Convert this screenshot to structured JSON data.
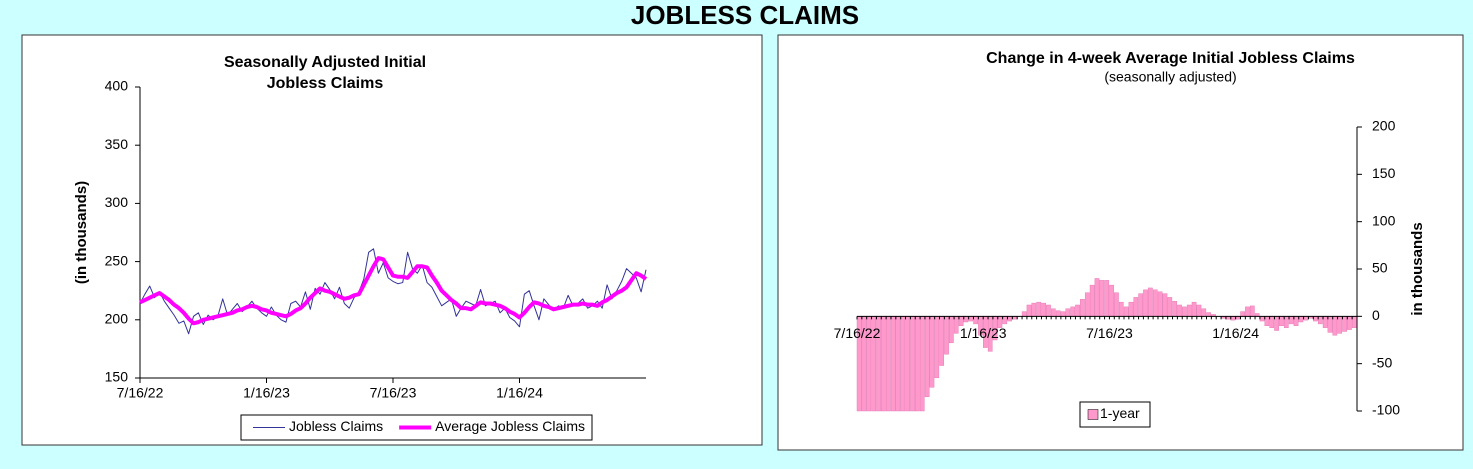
{
  "header": {
    "title": "JOBLESS CLAIMS"
  },
  "chart_data": [
    {
      "type": "line",
      "title": [
        "Seasonally Adjusted Initial",
        "Jobless Claims"
      ],
      "y_label": "(in thousands)",
      "categories": [
        "7/16/22",
        null,
        null,
        null,
        null,
        null,
        null,
        null,
        null,
        null,
        null,
        null,
        null,
        null,
        null,
        null,
        null,
        null,
        null,
        null,
        null,
        null,
        null,
        null,
        null,
        null,
        "1/16/23",
        null,
        null,
        null,
        null,
        null,
        null,
        null,
        null,
        null,
        null,
        null,
        null,
        null,
        null,
        null,
        null,
        null,
        null,
        null,
        null,
        null,
        null,
        null,
        null,
        null,
        "7/16/23",
        null,
        null,
        null,
        null,
        null,
        null,
        null,
        null,
        null,
        null,
        null,
        null,
        null,
        null,
        null,
        null,
        null,
        null,
        null,
        null,
        null,
        null,
        null,
        null,
        null,
        "1/16/24",
        null,
        null,
        null,
        null,
        null,
        null,
        null,
        null,
        null,
        null,
        null,
        null,
        null,
        null,
        null,
        null,
        null,
        null,
        null,
        null,
        null,
        null,
        null,
        null,
        null,
        null
      ],
      "series": [
        {
          "name": "Jobless Claims",
          "color": "#333399",
          "width": 1,
          "values": [
            214,
            222,
            229,
            219,
            224,
            216,
            210,
            204,
            197,
            199,
            188,
            203,
            206,
            196,
            204,
            200,
            203,
            218,
            204,
            209,
            214,
            207,
            211,
            216,
            210,
            206,
            203,
            211,
            204,
            200,
            198,
            214,
            216,
            211,
            224,
            209,
            227,
            222,
            232,
            226,
            218,
            228,
            214,
            210,
            219,
            224,
            235,
            258,
            261,
            240,
            249,
            236,
            233,
            231,
            232,
            258,
            244,
            240,
            247,
            232,
            228,
            220,
            212,
            215,
            218,
            203,
            210,
            216,
            214,
            212,
            226,
            212,
            214,
            216,
            206,
            210,
            202,
            199,
            194,
            222,
            225,
            212,
            200,
            218,
            213,
            208,
            212,
            210,
            221,
            212,
            214,
            218,
            210,
            212,
            216,
            210,
            230,
            218,
            225,
            233,
            244,
            240,
            236,
            224,
            243
          ]
        },
        {
          "name": "Average Jobless Claims",
          "color": "#ff00ff",
          "width": 4,
          "values": [
            215,
            217,
            219,
            221,
            223,
            220,
            217,
            213,
            210,
            206,
            201,
            197,
            198,
            200,
            201,
            202,
            203,
            204,
            205,
            206,
            208,
            209,
            211,
            212,
            211,
            209,
            208,
            206,
            205,
            204,
            203,
            205,
            208,
            210,
            214,
            219,
            223,
            227,
            225,
            224,
            222,
            220,
            218,
            219,
            221,
            222,
            230,
            238,
            246,
            253,
            252,
            245,
            238,
            237,
            237,
            236,
            241,
            246,
            246,
            245,
            238,
            232,
            225,
            221,
            217,
            214,
            210,
            210,
            209,
            212,
            215,
            214,
            214,
            213,
            212,
            210,
            207,
            205,
            202,
            206,
            211,
            215,
            214,
            212,
            211,
            209,
            210,
            211,
            212,
            213,
            213,
            214,
            213,
            213,
            212,
            215,
            217,
            220,
            223,
            225,
            228,
            234,
            240,
            238,
            235
          ]
        }
      ],
      "ylim": [
        150,
        400
      ],
      "yticks": [
        150,
        200,
        250,
        300,
        350,
        400
      ],
      "y_axis_position": "left",
      "grid": false,
      "legend": "bottom"
    },
    {
      "type": "bar",
      "title": "Change in 4-week Average Initial Jobless Claims",
      "subtitle": "(seasonally adjusted)",
      "y_label": "in thousands",
      "categories": [
        "7/16/22",
        null,
        null,
        null,
        null,
        null,
        null,
        null,
        null,
        null,
        null,
        null,
        null,
        null,
        null,
        null,
        null,
        null,
        null,
        null,
        null,
        null,
        null,
        null,
        null,
        null,
        "1/16/23",
        null,
        null,
        null,
        null,
        null,
        null,
        null,
        null,
        null,
        null,
        null,
        null,
        null,
        null,
        null,
        null,
        null,
        null,
        null,
        null,
        null,
        null,
        null,
        null,
        null,
        "7/16/23",
        null,
        null,
        null,
        null,
        null,
        null,
        null,
        null,
        null,
        null,
        null,
        null,
        null,
        null,
        null,
        null,
        null,
        null,
        null,
        null,
        null,
        null,
        null,
        null,
        null,
        "1/16/24",
        null,
        null,
        null,
        null,
        null,
        null,
        null,
        null,
        null,
        null,
        null,
        null,
        null,
        null,
        null,
        null,
        null,
        null,
        null,
        null,
        null,
        null,
        null,
        null
      ],
      "series": [
        {
          "name": "1-year",
          "color": "#ff99cc",
          "values": [
            -100,
            -100,
            -100,
            -100,
            -100,
            -100,
            -100,
            -100,
            -100,
            -100,
            -100,
            -100,
            -100,
            -100,
            -85,
            -75,
            -65,
            -52,
            -40,
            -28,
            -18,
            -10,
            -6,
            -5,
            -8,
            -20,
            -33,
            -37,
            -25,
            -12,
            -8,
            -5,
            -3,
            0,
            5,
            12,
            14,
            15,
            14,
            12,
            8,
            6,
            5,
            8,
            10,
            12,
            18,
            25,
            33,
            40,
            38,
            38,
            33,
            25,
            15,
            10,
            15,
            20,
            24,
            28,
            30,
            28,
            26,
            24,
            20,
            16,
            12,
            10,
            12,
            15,
            12,
            8,
            4,
            2,
            0,
            -2,
            -3,
            -4,
            -3,
            5,
            10,
            11,
            3,
            -5,
            -10,
            -12,
            -15,
            -10,
            -12,
            -8,
            -10,
            -6,
            -4,
            -2,
            -5,
            -8,
            -12,
            -17,
            -20,
            -18,
            -16,
            -14,
            -12
          ]
        }
      ],
      "ylim": [
        -100,
        200
      ],
      "yticks": [
        -100,
        -50,
        0,
        50,
        100,
        150,
        200
      ],
      "y_axis_position": "right",
      "grid": false,
      "legend": "bottom"
    }
  ]
}
